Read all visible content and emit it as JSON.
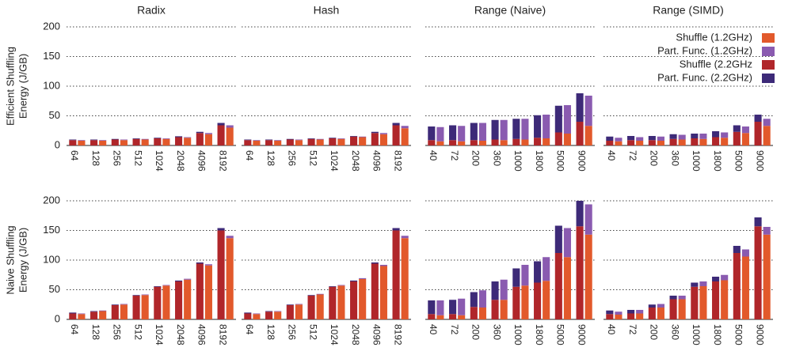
{
  "chart_data": [
    {
      "type": "bar",
      "title": "Radix",
      "ylabel": [
        "Efficient Shuffling",
        "Energy (J/GB)"
      ],
      "categories": [
        "64",
        "128",
        "256",
        "512",
        "1024",
        "2048",
        "4096",
        "8192"
      ],
      "ylim": [
        0,
        200
      ],
      "yticks": [
        0,
        50,
        100,
        150,
        200
      ],
      "grid": true,
      "series": [
        {
          "name": "Shuffle (1.2GHz)",
          "color": "#e2592b",
          "values": [
            8,
            8,
            9,
            10,
            11,
            13,
            19,
            30
          ]
        },
        {
          "name": "Part. Func. (1.2GHz)",
          "color": "#8a5bb0",
          "values": [
            1,
            1,
            1,
            1,
            1,
            1,
            2,
            4
          ]
        },
        {
          "name": "Shuffle (2.2GHz",
          "color": "#b0262a",
          "values": [
            9,
            9,
            10,
            11,
            12,
            14,
            21,
            34
          ]
        },
        {
          "name": "Part. Func. (2.2GHz)",
          "color": "#3d2a78",
          "values": [
            1,
            1,
            1,
            1,
            1,
            1.5,
            2,
            4
          ]
        }
      ]
    },
    {
      "type": "bar",
      "title": "Hash",
      "categories": [
        "64",
        "128",
        "256",
        "512",
        "1024",
        "2048",
        "4096",
        "8192"
      ],
      "ylim": [
        0,
        200
      ],
      "yticks": [
        0,
        50,
        100,
        150,
        200
      ],
      "grid": true,
      "series": [
        {
          "name": "Shuffle (1.2GHz)",
          "color": "#e2592b",
          "values": [
            8,
            8,
            9,
            10,
            11,
            14,
            19,
            29
          ]
        },
        {
          "name": "Part. Func. (1.2GHz)",
          "color": "#8a5bb0",
          "values": [
            1,
            1,
            1,
            1,
            1,
            1,
            2,
            4
          ]
        },
        {
          "name": "Shuffle (2.2GHz",
          "color": "#b0262a",
          "values": [
            9,
            9,
            10,
            11,
            12,
            15,
            21,
            34
          ]
        },
        {
          "name": "Part. Func. (2.2GHz)",
          "color": "#3d2a78",
          "values": [
            1,
            1,
            1,
            1,
            1,
            1,
            2,
            4
          ]
        }
      ]
    },
    {
      "type": "bar",
      "title": "Range (Naive)",
      "categories": [
        "40",
        "72",
        "200",
        "360",
        "1000",
        "1800",
        "5000",
        "9000"
      ],
      "ylim": [
        0,
        200
      ],
      "yticks": [
        0,
        50,
        100,
        150,
        200
      ],
      "grid": true,
      "series": [
        {
          "name": "Shuffle (1.2GHz)",
          "color": "#e2592b",
          "values": [
            7,
            7,
            8,
            9,
            10,
            12,
            20,
            33
          ]
        },
        {
          "name": "Part. Func. (1.2GHz)",
          "color": "#8a5bb0",
          "values": [
            24,
            26,
            30,
            34,
            35,
            40,
            48,
            51
          ]
        },
        {
          "name": "Shuffle (2.2GHz",
          "color": "#b0262a",
          "values": [
            9,
            9,
            9,
            10,
            11,
            13,
            22,
            40
          ]
        },
        {
          "name": "Part. Func. (2.2GHz)",
          "color": "#3d2a78",
          "values": [
            23,
            25,
            29,
            33,
            34,
            38,
            45,
            48
          ]
        }
      ]
    },
    {
      "type": "bar",
      "title": "Range (SIMD)",
      "legend": "upper right",
      "categories": [
        "40",
        "72",
        "200",
        "360",
        "1000",
        "1800",
        "5000",
        "9000"
      ],
      "ylim": [
        0,
        200
      ],
      "yticks": [
        0,
        50,
        100,
        150,
        200
      ],
      "grid": true,
      "series": [
        {
          "name": "Shuffle (1.2GHz)",
          "color": "#e2592b",
          "values": [
            7,
            8,
            8,
            10,
            11,
            13,
            21,
            33
          ]
        },
        {
          "name": "Part. Func. (1.2GHz)",
          "color": "#8a5bb0",
          "values": [
            6,
            6,
            7,
            8,
            9,
            9,
            11,
            12
          ]
        },
        {
          "name": "Shuffle (2.2GHz",
          "color": "#b0262a",
          "values": [
            8,
            9,
            9,
            11,
            12,
            14,
            23,
            40
          ]
        },
        {
          "name": "Part. Func. (2.2GHz)",
          "color": "#3d2a78",
          "values": [
            7,
            7,
            7,
            8,
            8,
            10,
            11,
            12
          ]
        }
      ]
    },
    {
      "type": "bar",
      "ylabel": [
        "Naive Shuffling",
        "Energy (J/GB)"
      ],
      "categories": [
        "64",
        "128",
        "256",
        "512",
        "1024",
        "2048",
        "4096",
        "8192"
      ],
      "ylim": [
        0,
        200
      ],
      "yticks": [
        0,
        50,
        100,
        150,
        200
      ],
      "grid": true,
      "series": [
        {
          "name": "Shuffle (1.2GHz)",
          "color": "#e2592b",
          "values": [
            9,
            14,
            25,
            41,
            57,
            67,
            91,
            137
          ]
        },
        {
          "name": "Part. Func. (1.2GHz)",
          "color": "#8a5bb0",
          "values": [
            1,
            1,
            1,
            1,
            1,
            1.5,
            2,
            4
          ]
        },
        {
          "name": "Shuffle (2.2GHz",
          "color": "#b0262a",
          "values": [
            10,
            13,
            24,
            40,
            55,
            64,
            94,
            150
          ]
        },
        {
          "name": "Part. Func. (2.2GHz)",
          "color": "#3d2a78",
          "values": [
            1.5,
            1,
            1,
            1,
            1,
            1.5,
            2,
            4
          ]
        }
      ]
    },
    {
      "type": "bar",
      "categories": [
        "64",
        "128",
        "256",
        "512",
        "1024",
        "2048",
        "4096",
        "8192"
      ],
      "ylim": [
        0,
        200
      ],
      "yticks": [
        0,
        50,
        100,
        150,
        200
      ],
      "grid": true,
      "series": [
        {
          "name": "Shuffle (1.2GHz)",
          "color": "#e2592b",
          "values": [
            9,
            13,
            25,
            42,
            57,
            68,
            90,
            137
          ]
        },
        {
          "name": "Part. Func. (1.2GHz)",
          "color": "#8a5bb0",
          "values": [
            1,
            1,
            1,
            1,
            1,
            1.5,
            2,
            4
          ]
        },
        {
          "name": "Shuffle (2.2GHz",
          "color": "#b0262a",
          "values": [
            10,
            13,
            24,
            40,
            55,
            64,
            94,
            150
          ]
        },
        {
          "name": "Part. Func. (2.2GHz)",
          "color": "#3d2a78",
          "values": [
            1.5,
            1,
            1,
            1,
            1,
            1.5,
            2,
            4
          ]
        }
      ]
    },
    {
      "type": "bar",
      "categories": [
        "40",
        "72",
        "200",
        "360",
        "1000",
        "1800",
        "5000",
        "9000"
      ],
      "ylim": [
        0,
        200
      ],
      "yticks": [
        0,
        50,
        100,
        150,
        200
      ],
      "grid": true,
      "series": [
        {
          "name": "Shuffle (1.2GHz)",
          "color": "#e2592b",
          "values": [
            7,
            7,
            20,
            33,
            57,
            65,
            105,
            143
          ]
        },
        {
          "name": "Part. Func. (1.2GHz)",
          "color": "#8a5bb0",
          "values": [
            25,
            28,
            29,
            34,
            35,
            40,
            49,
            51
          ]
        },
        {
          "name": "Shuffle (2.2GHz",
          "color": "#b0262a",
          "values": [
            9,
            9,
            21,
            33,
            55,
            62,
            112,
            157
          ]
        },
        {
          "name": "Part. Func. (2.2GHz)",
          "color": "#3d2a78",
          "values": [
            23,
            24,
            25,
            31,
            31,
            36,
            46,
            43
          ]
        }
      ]
    },
    {
      "type": "bar",
      "categories": [
        "40",
        "72",
        "200",
        "360",
        "1000",
        "1800",
        "5000",
        "9000"
      ],
      "ylim": [
        0,
        200
      ],
      "yticks": [
        0,
        50,
        100,
        150,
        200
      ],
      "grid": true,
      "series": [
        {
          "name": "Shuffle (1.2GHz)",
          "color": "#e2592b",
          "values": [
            8,
            10,
            20,
            34,
            56,
            66,
            106,
            143
          ]
        },
        {
          "name": "Part. Func. (1.2GHz)",
          "color": "#8a5bb0",
          "values": [
            5,
            6,
            6,
            6,
            8,
            9,
            12,
            13
          ]
        },
        {
          "name": "Shuffle (2.2GHz",
          "color": "#b0262a",
          "values": [
            9,
            10,
            20,
            34,
            55,
            64,
            112,
            157
          ]
        },
        {
          "name": "Part. Func. (2.2GHz)",
          "color": "#3d2a78",
          "values": [
            6,
            6,
            5,
            6,
            7,
            8,
            12,
            15
          ]
        }
      ]
    }
  ]
}
